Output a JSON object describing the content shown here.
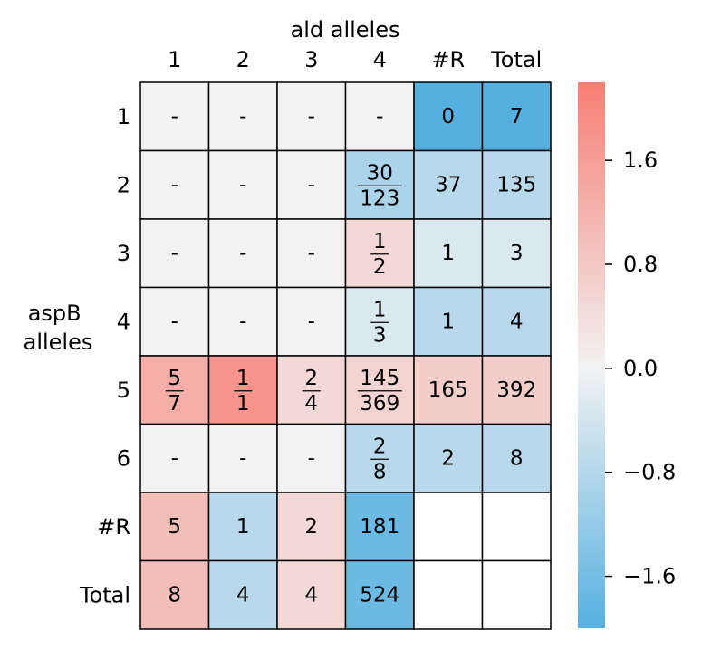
{
  "chart_data": {
    "type": "heatmap",
    "xlabel": "ald alleles",
    "ylabel_lines": [
      "aspB",
      "alleles"
    ],
    "col_labels": [
      "1",
      "2",
      "3",
      "4",
      "#R",
      "Total"
    ],
    "row_labels": [
      "1",
      "2",
      "3",
      "4",
      "5",
      "6",
      "#R",
      "Total"
    ],
    "cells": [
      [
        {
          "t": "-",
          "v": 0
        },
        {
          "t": "-",
          "v": 0
        },
        {
          "t": "-",
          "v": 0
        },
        {
          "t": "-",
          "v": 0
        },
        {
          "t": "0",
          "v": -2.0
        },
        {
          "t": "7",
          "v": -2.0
        }
      ],
      [
        {
          "t": "-",
          "v": 0
        },
        {
          "t": "-",
          "v": 0
        },
        {
          "t": "-",
          "v": 0
        },
        {
          "n": "30",
          "d": "123",
          "v": -0.9
        },
        {
          "t": "37",
          "v": -0.75
        },
        {
          "t": "135",
          "v": -0.75
        }
      ],
      [
        {
          "t": "-",
          "v": 0
        },
        {
          "t": "-",
          "v": 0
        },
        {
          "t": "-",
          "v": 0
        },
        {
          "n": "1",
          "d": "2",
          "v": 0.5
        },
        {
          "t": "1",
          "v": -0.3
        },
        {
          "t": "3",
          "v": -0.3
        }
      ],
      [
        {
          "t": "-",
          "v": 0
        },
        {
          "t": "-",
          "v": 0
        },
        {
          "t": "-",
          "v": 0
        },
        {
          "n": "1",
          "d": "3",
          "v": -0.3
        },
        {
          "t": "1",
          "v": -0.75
        },
        {
          "t": "4",
          "v": -0.75
        }
      ],
      [
        {
          "n": "5",
          "d": "7",
          "v": 1.3
        },
        {
          "n": "1",
          "d": "1",
          "v": 1.8
        },
        {
          "n": "2",
          "d": "4",
          "v": 0.5
        },
        {
          "n": "145",
          "d": "369",
          "v": 0.6
        },
        {
          "t": "165",
          "v": 0.7
        },
        {
          "t": "392",
          "v": 0.7
        }
      ],
      [
        {
          "t": "-",
          "v": 0
        },
        {
          "t": "-",
          "v": 0
        },
        {
          "t": "-",
          "v": 0
        },
        {
          "n": "2",
          "d": "8",
          "v": -0.75
        },
        {
          "t": "2",
          "v": -0.75
        },
        {
          "t": "8",
          "v": -0.75
        }
      ],
      [
        {
          "t": "5",
          "v": 1.0
        },
        {
          "t": "1",
          "v": -0.75
        },
        {
          "t": "2",
          "v": 0.5
        },
        {
          "t": "181",
          "v": -1.7
        },
        {
          "t": "",
          "v": null
        },
        {
          "t": "",
          "v": null
        }
      ],
      [
        {
          "t": "8",
          "v": 1.0
        },
        {
          "t": "4",
          "v": -0.75
        },
        {
          "t": "4",
          "v": 0.5
        },
        {
          "t": "524",
          "v": -1.7
        },
        {
          "t": "",
          "v": null
        },
        {
          "t": "",
          "v": null
        }
      ]
    ],
    "colorbar": {
      "range": [
        -2.0,
        2.2
      ],
      "ticks": [
        1.6,
        0.8,
        0.0,
        -0.8,
        -1.6
      ],
      "tick_labels": [
        "1.6",
        "0.8",
        "0.0",
        "−0.8",
        "−1.6"
      ],
      "colors": {
        "negative": "#45a9de",
        "center": "#f2f2f2",
        "positive": "#f67f73"
      }
    }
  }
}
